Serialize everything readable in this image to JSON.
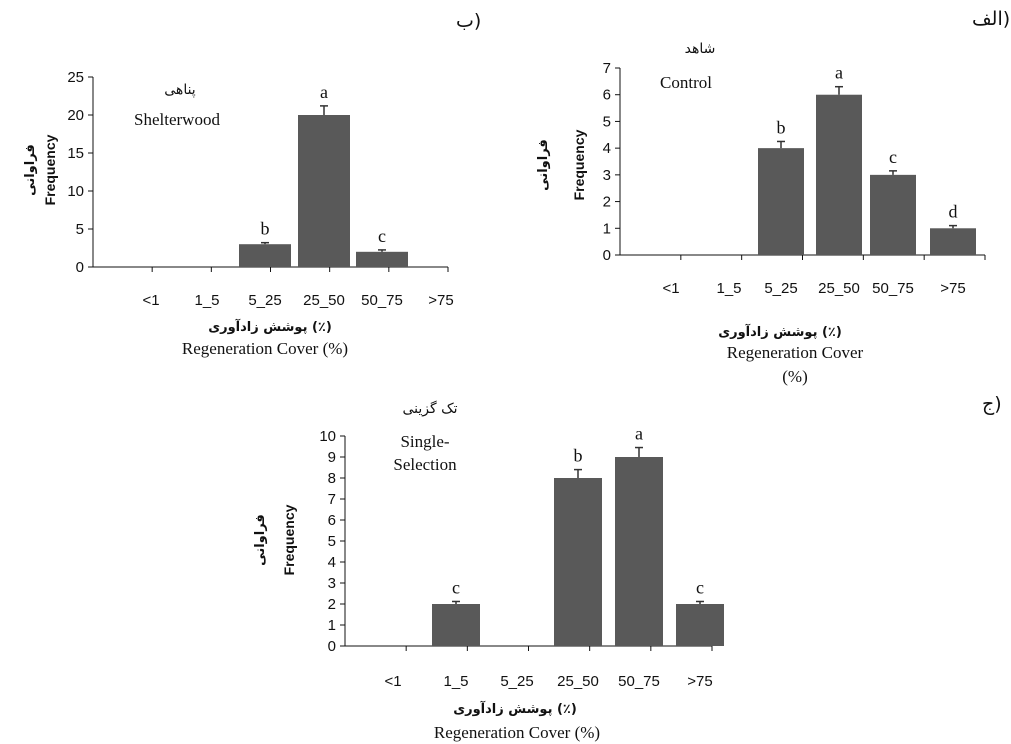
{
  "panel_labels": {
    "a": "الف)",
    "b": "ب)",
    "c": "ج)"
  },
  "chart_data": [
    {
      "id": "control",
      "type": "bar",
      "panel_label": "الف)",
      "title_fa": "شاهد",
      "title_en": "Control",
      "categories": [
        "<1",
        "1_5",
        "5_25",
        "25_50",
        "50_75",
        ">75"
      ],
      "values": [
        0,
        0,
        4,
        6,
        3,
        1
      ],
      "errors": [
        0,
        0,
        0.25,
        0.3,
        0.15,
        0.1
      ],
      "significance": [
        "",
        "",
        "b",
        "a",
        "c",
        "d"
      ],
      "ylabel_fa": "فراوانی",
      "ylabel_en": "Frequency",
      "xlabel_fa": "پوشش زادآوری (٪)",
      "xlabel_en": [
        "Regeneration Cover",
        "(%)"
      ],
      "ylim": [
        0,
        7
      ],
      "yticks": [
        0,
        1,
        2,
        3,
        4,
        5,
        6,
        7
      ],
      "bar_color": "#595959",
      "grid": false,
      "legend": "none"
    },
    {
      "id": "shelterwood",
      "type": "bar",
      "panel_label": "ب)",
      "title_fa": "پناهی",
      "title_en": "Shelterwood",
      "categories": [
        "<1",
        "1_5",
        "5_25",
        "25_50",
        "50_75",
        ">75"
      ],
      "values": [
        0,
        0,
        3,
        20,
        2,
        0
      ],
      "errors": [
        0,
        0,
        0.2,
        1.2,
        0.25,
        0
      ],
      "significance": [
        "",
        "",
        "b",
        "a",
        "c",
        ""
      ],
      "ylabel_fa": "فراوانی",
      "ylabel_en": "Frequency",
      "xlabel_fa": "پوشش زادآوری (٪)",
      "xlabel_en": [
        "Regeneration Cover (%)"
      ],
      "ylim": [
        0,
        25
      ],
      "yticks": [
        0,
        5,
        10,
        15,
        20,
        25
      ],
      "bar_color": "#595959",
      "grid": false,
      "legend": "none"
    },
    {
      "id": "single-selection",
      "type": "bar",
      "panel_label": "ج)",
      "title_fa": "تک گزینی",
      "title_en": [
        "Single-",
        "Selection"
      ],
      "categories": [
        "<1",
        "1_5",
        "5_25",
        "25_50",
        "50_75",
        ">75"
      ],
      "values": [
        0,
        2,
        0,
        8,
        9,
        2
      ],
      "errors": [
        0,
        0.12,
        0,
        0.4,
        0.45,
        0.12
      ],
      "significance": [
        "",
        "c",
        "",
        "b",
        "a",
        "c"
      ],
      "ylabel_fa": "فراوانی",
      "ylabel_en": "Frequency",
      "xlabel_fa": "پوشش زادآوری (٪)",
      "xlabel_en": [
        "Regeneration Cover (%)"
      ],
      "ylim": [
        0,
        10
      ],
      "yticks": [
        0,
        1,
        2,
        3,
        4,
        5,
        6,
        7,
        8,
        9,
        10
      ],
      "bar_color": "#595959",
      "grid": false,
      "legend": "none"
    }
  ]
}
